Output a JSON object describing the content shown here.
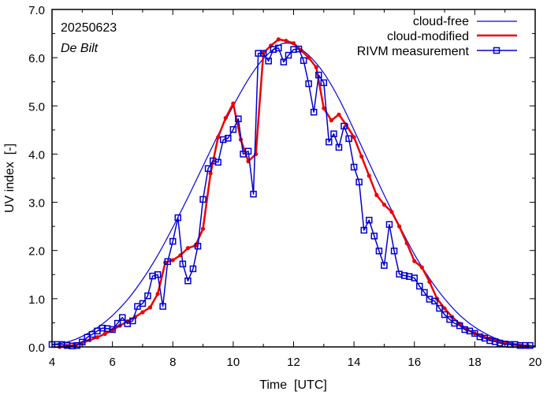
{
  "chart_data": {
    "type": "line",
    "title": "",
    "annotations": {
      "date": "20250623",
      "station": "De Bilt"
    },
    "xlabel": "Time  [UTC]",
    "ylabel": "UV index  [-]",
    "xlim": [
      4,
      20
    ],
    "ylim": [
      0,
      7
    ],
    "xticks": [
      4,
      6,
      8,
      10,
      12,
      14,
      16,
      18,
      20
    ],
    "xtick_labels": [
      "4",
      "6",
      "8",
      "10",
      "12",
      "14",
      "16",
      "18",
      "20"
    ],
    "yticks": [
      0,
      1,
      2,
      3,
      4,
      5,
      6,
      7
    ],
    "ytick_labels": [
      "0.0",
      "1.0",
      "2.0",
      "3.0",
      "4.0",
      "5.0",
      "6.0",
      "7.0"
    ],
    "grid": false,
    "legend_position": "top-right",
    "colors": {
      "cloud_free": "#0000ee",
      "cloud_modified": "#ee0000",
      "measurement": "#0000cc"
    },
    "series": [
      {
        "name": "cloud-free",
        "style": "line",
        "x": [
          4.0,
          4.5,
          5.0,
          5.5,
          6.0,
          6.5,
          7.0,
          7.5,
          8.0,
          8.5,
          9.0,
          9.5,
          10.0,
          10.5,
          11.0,
          11.5,
          11.75,
          12.0,
          12.5,
          13.0,
          13.5,
          14.0,
          14.5,
          15.0,
          15.5,
          16.0,
          16.5,
          17.0,
          17.5,
          18.0,
          18.5,
          19.0,
          19.5,
          20.0
        ],
        "y": [
          0.05,
          0.1,
          0.22,
          0.4,
          0.65,
          0.98,
          1.4,
          1.9,
          2.48,
          3.1,
          3.75,
          4.4,
          5.0,
          5.55,
          5.98,
          6.25,
          6.3,
          6.27,
          6.05,
          5.68,
          5.15,
          4.5,
          3.82,
          3.15,
          2.52,
          1.92,
          1.42,
          1.0,
          0.66,
          0.41,
          0.23,
          0.11,
          0.05,
          0.02
        ]
      },
      {
        "name": "cloud-modified",
        "style": "line-dot",
        "x": [
          4.25,
          4.5,
          4.75,
          5.0,
          5.25,
          5.5,
          5.75,
          6.0,
          6.25,
          6.5,
          6.75,
          7.0,
          7.25,
          7.5,
          7.75,
          8.0,
          8.25,
          8.5,
          8.75,
          9.0,
          9.25,
          9.5,
          9.75,
          10.0,
          10.25,
          10.5,
          10.75,
          11.0,
          11.25,
          11.5,
          11.75,
          12.0,
          12.25,
          12.5,
          12.75,
          13.0,
          13.25,
          13.5,
          13.75,
          14.0,
          14.25,
          14.5,
          14.75,
          15.0,
          15.25,
          15.5,
          15.75,
          16.0,
          16.25,
          16.5,
          16.75,
          17.0,
          17.25,
          17.5,
          17.75,
          18.0,
          18.25,
          18.5,
          18.75,
          19.0,
          19.25,
          19.5,
          19.75
        ],
        "y": [
          0.0,
          0.02,
          0.04,
          0.08,
          0.14,
          0.2,
          0.27,
          0.35,
          0.44,
          0.53,
          0.62,
          0.72,
          0.82,
          1.1,
          1.75,
          1.8,
          1.9,
          2.05,
          2.1,
          2.45,
          3.6,
          4.35,
          4.75,
          5.05,
          4.3,
          3.85,
          4.0,
          6.1,
          6.25,
          6.38,
          6.35,
          6.3,
          6.15,
          6.0,
          5.8,
          4.95,
          4.7,
          4.82,
          4.6,
          4.35,
          3.95,
          3.55,
          3.15,
          2.95,
          2.8,
          2.5,
          2.15,
          1.78,
          1.65,
          1.35,
          1.0,
          0.8,
          0.62,
          0.48,
          0.36,
          0.28,
          0.22,
          0.17,
          0.12,
          0.08,
          0.05,
          0.03,
          0.02
        ]
      },
      {
        "name": "RIVM measurement",
        "style": "line-square",
        "x": [
          4.0,
          4.17,
          4.33,
          4.5,
          4.67,
          4.83,
          5.0,
          5.17,
          5.33,
          5.5,
          5.67,
          5.83,
          6.0,
          6.17,
          6.33,
          6.5,
          6.67,
          6.83,
          7.0,
          7.17,
          7.33,
          7.5,
          7.67,
          7.83,
          8.0,
          8.17,
          8.33,
          8.5,
          8.67,
          8.83,
          9.0,
          9.17,
          9.33,
          9.5,
          9.67,
          9.83,
          10.0,
          10.17,
          10.33,
          10.5,
          10.67,
          10.83,
          11.0,
          11.17,
          11.33,
          11.5,
          11.67,
          11.83,
          12.0,
          12.17,
          12.33,
          12.5,
          12.67,
          12.83,
          13.0,
          13.17,
          13.33,
          13.5,
          13.67,
          13.83,
          14.0,
          14.17,
          14.33,
          14.5,
          14.67,
          14.83,
          15.0,
          15.17,
          15.33,
          15.5,
          15.67,
          15.83,
          16.0,
          16.17,
          16.33,
          16.5,
          16.67,
          16.83,
          17.0,
          17.17,
          17.33,
          17.5,
          17.67,
          17.83,
          18.0,
          18.17,
          18.33,
          18.5,
          18.67,
          18.83,
          19.0,
          19.17,
          19.33,
          19.5,
          19.67,
          19.83
        ],
        "y": [
          0.05,
          0.05,
          0.05,
          0.03,
          0.02,
          0.03,
          0.1,
          0.2,
          0.26,
          0.33,
          0.39,
          0.38,
          0.36,
          0.49,
          0.61,
          0.48,
          0.54,
          0.84,
          0.9,
          1.06,
          1.47,
          1.5,
          0.84,
          1.77,
          2.19,
          2.68,
          1.72,
          1.37,
          1.62,
          2.09,
          3.06,
          3.7,
          3.86,
          3.83,
          4.3,
          4.33,
          4.51,
          4.73,
          4.0,
          4.06,
          3.17,
          6.09,
          6.09,
          5.93,
          6.17,
          6.2,
          5.91,
          6.05,
          6.17,
          6.18,
          5.94,
          5.46,
          4.87,
          5.64,
          5.48,
          4.25,
          4.42,
          4.14,
          4.58,
          4.32,
          3.73,
          3.42,
          2.42,
          2.63,
          2.3,
          1.99,
          1.69,
          2.54,
          1.99,
          1.51,
          1.48,
          1.46,
          1.43,
          1.26,
          1.13,
          0.99,
          0.95,
          0.8,
          0.67,
          0.57,
          0.49,
          0.44,
          0.36,
          0.33,
          0.28,
          0.21,
          0.18,
          0.13,
          0.11,
          0.08,
          0.06,
          0.05,
          0.05,
          0.03,
          0.03,
          0.03
        ]
      }
    ]
  }
}
